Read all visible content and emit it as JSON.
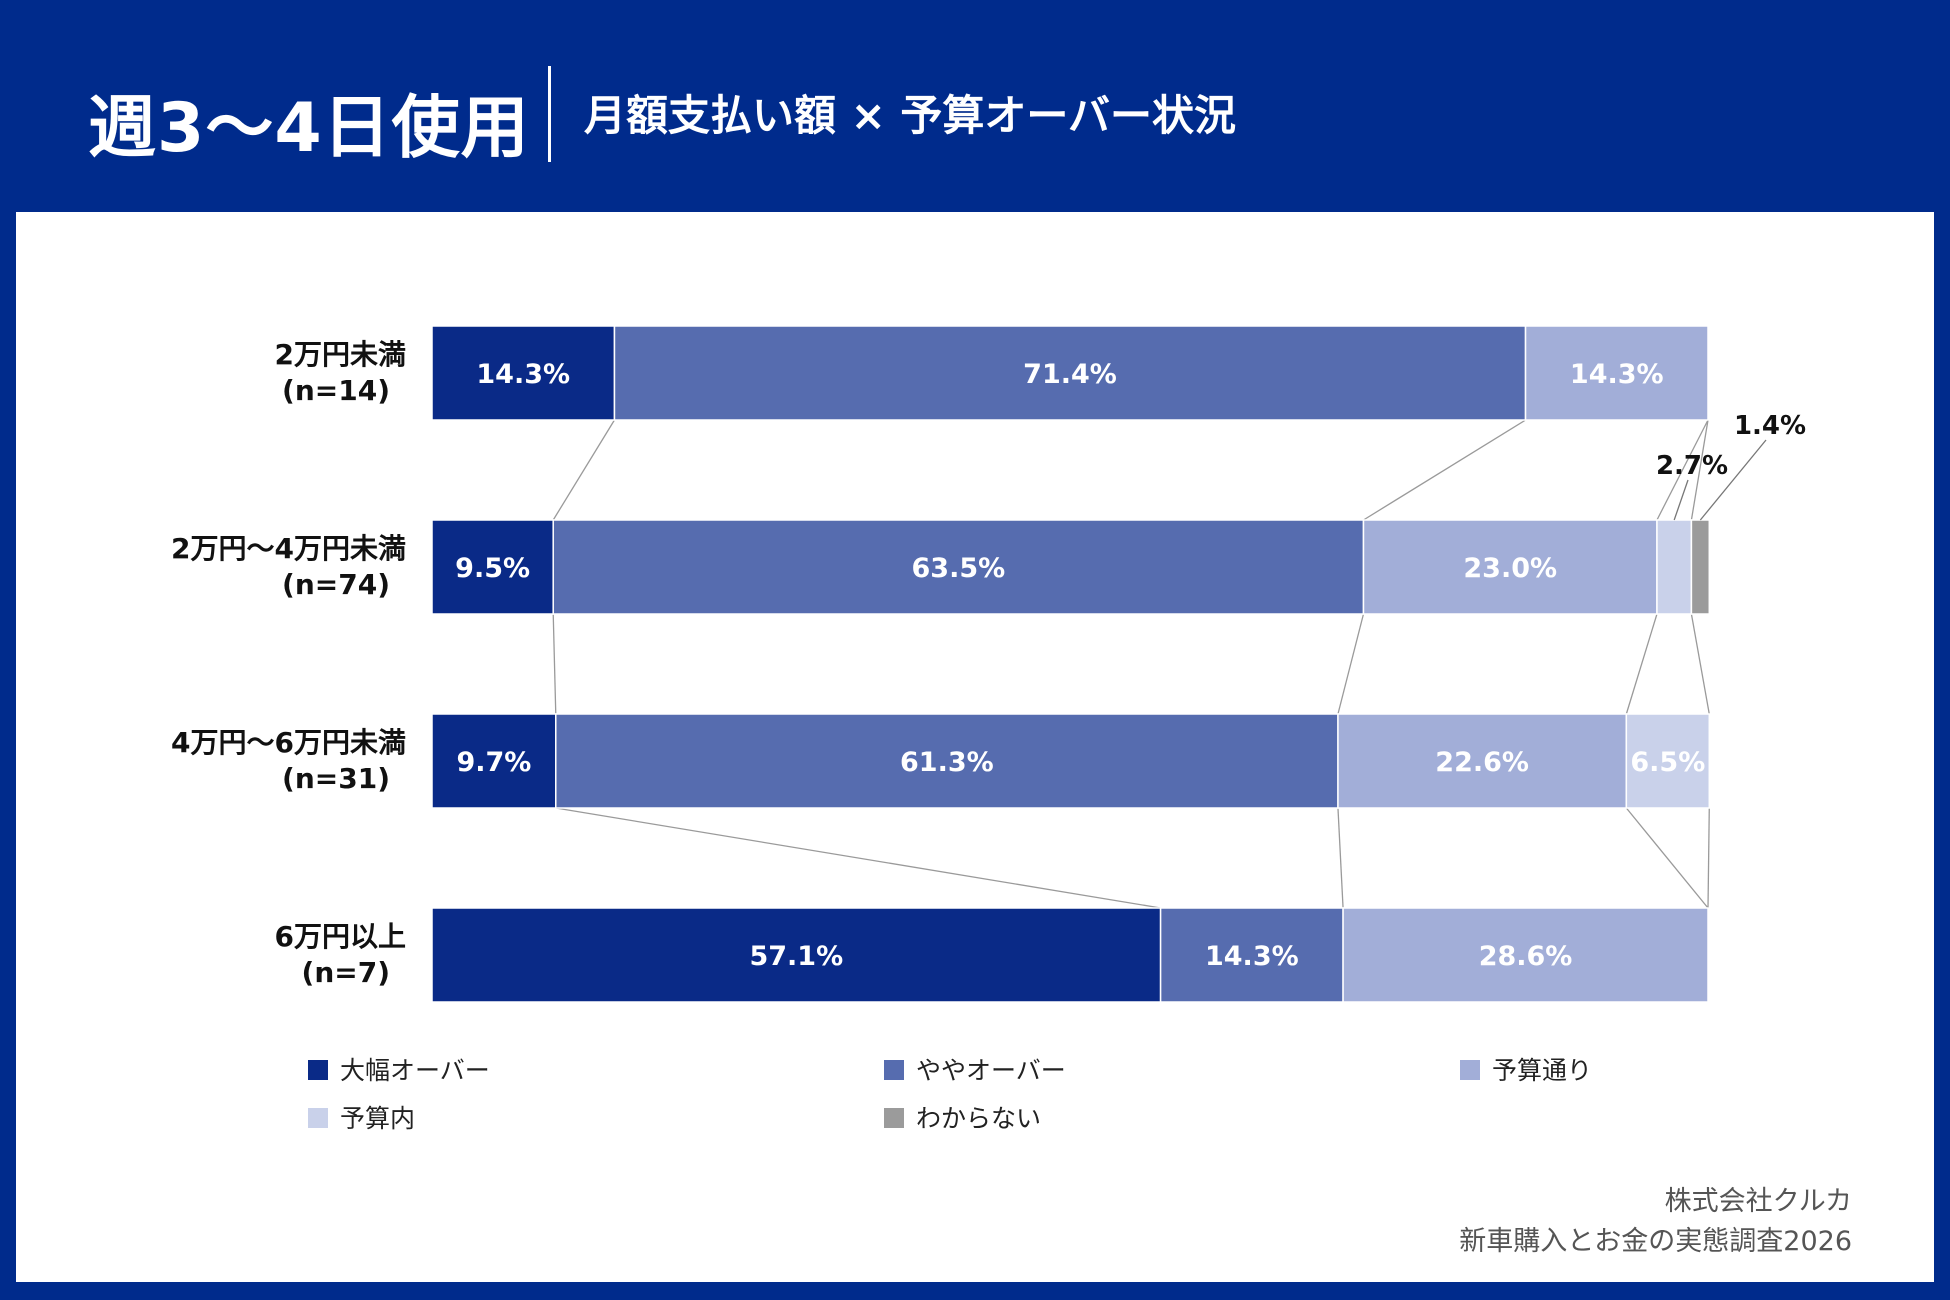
{
  "header": {
    "title": "週3〜4日使用",
    "subtitle": "月額支払い額 × 予算オーバー状況"
  },
  "colors": {
    "header_bg": "#002b8c",
    "cat_colors": [
      "#0a2a87",
      "#566caf",
      "#a2aed8",
      "#c9d1ea",
      "#9b9b9b"
    ],
    "label_dark": "#000000",
    "label_light": "#ffffff"
  },
  "chart_data": {
    "type": "bar",
    "orientation": "horizontal",
    "stacked": true,
    "normalized": true,
    "categories": [
      {
        "label": "2万円未満",
        "n": "(n=14)"
      },
      {
        "label": "2万円〜4万円未満",
        "n": "(n=74)"
      },
      {
        "label": "4万円〜6万円未満",
        "n": "(n=31)"
      },
      {
        "label": "6万円以上",
        "n": "(n=7)"
      }
    ],
    "series": [
      {
        "name": "大幅オーバー",
        "values": [
          14.3,
          9.5,
          9.7,
          57.1
        ],
        "labels": [
          "14.3%",
          "9.5%",
          "9.7%",
          "57.1%"
        ]
      },
      {
        "name": "ややオーバー",
        "values": [
          71.4,
          63.5,
          61.3,
          14.3
        ],
        "labels": [
          "71.4%",
          "63.5%",
          "61.3%",
          "14.3%"
        ]
      },
      {
        "name": "予算通り",
        "values": [
          14.3,
          23.0,
          22.6,
          28.6
        ],
        "labels": [
          "14.3%",
          "23.0%",
          "22.6%",
          "28.6%"
        ]
      },
      {
        "name": "予算内",
        "values": [
          0,
          2.7,
          6.5,
          0
        ],
        "labels": [
          "",
          "2.7%",
          "6.5%",
          ""
        ]
      },
      {
        "name": "わからない",
        "values": [
          0,
          1.4,
          0,
          0
        ],
        "labels": [
          "",
          "1.4%",
          "",
          ""
        ]
      }
    ],
    "legend_position": "bottom",
    "xlim": [
      0,
      100
    ]
  },
  "credit": {
    "line1": "株式会社クルカ",
    "line2": "新車購入とお金の実態調査2026"
  }
}
